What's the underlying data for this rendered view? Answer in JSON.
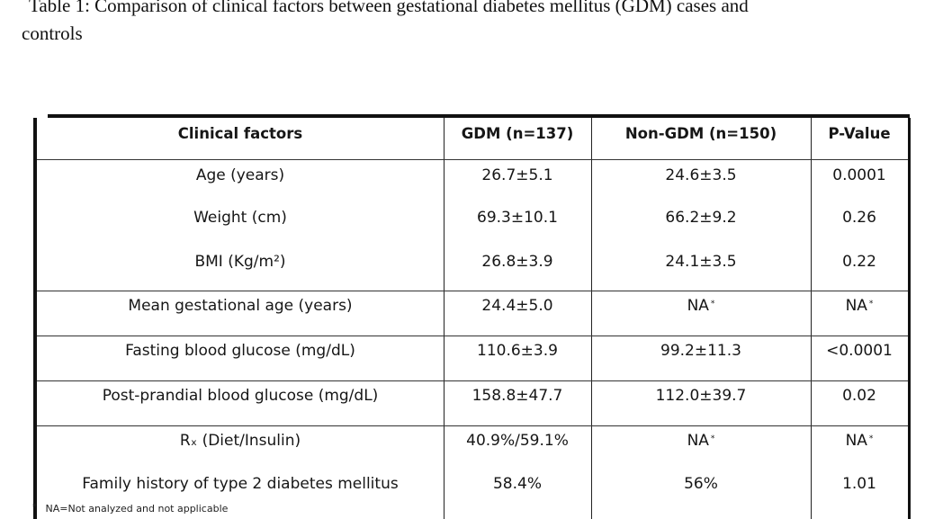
{
  "caption": {
    "line1": "Table 1: Comparison of clinical factors between gestational diabetes mellitus (GDM) cases and",
    "line2": "controls"
  },
  "table": {
    "headers": [
      "Clinical factors",
      "GDM (n=137)",
      "Non-GDM (n=150)",
      "P-Value"
    ],
    "rows": [
      {
        "factor": "Age (years)",
        "gdm": "26.7±5.1",
        "non_gdm": "24.6±3.5",
        "p": "0.0001"
      },
      {
        "factor": "Weight (cm)",
        "gdm": "69.3±10.1",
        "non_gdm": "66.2±9.2",
        "p": "0.26"
      },
      {
        "factor": "BMI (Kg/m²)",
        "gdm": "26.8±3.9",
        "non_gdm": "24.1±3.5",
        "p": "0.22"
      },
      {
        "factor": "Mean gestational age (years)",
        "gdm": "24.4±5.0",
        "non_gdm": "NA",
        "p": "NA"
      },
      {
        "factor": "Fasting blood glucose (mg/dL)",
        "gdm": "110.6±3.9",
        "non_gdm": "99.2±11.3",
        "p": "<0.0001"
      },
      {
        "factor": "Post-prandial blood glucose (mg/dL)",
        "gdm": "158.8±47.7",
        "non_gdm": "112.0±39.7",
        "p": "0.02"
      },
      {
        "factor": "Rₓ (Diet/Insulin)",
        "gdm": "40.9%/59.1%",
        "non_gdm": "NA",
        "p": "NA"
      },
      {
        "factor": "Family history of type 2 diabetes mellitus",
        "gdm": "58.4%",
        "non_gdm": "56%",
        "p": "1.01"
      }
    ],
    "asterisk": "*"
  },
  "footnote": {
    "mark": "*",
    "text": "NA=Not analyzed and not applicable"
  }
}
